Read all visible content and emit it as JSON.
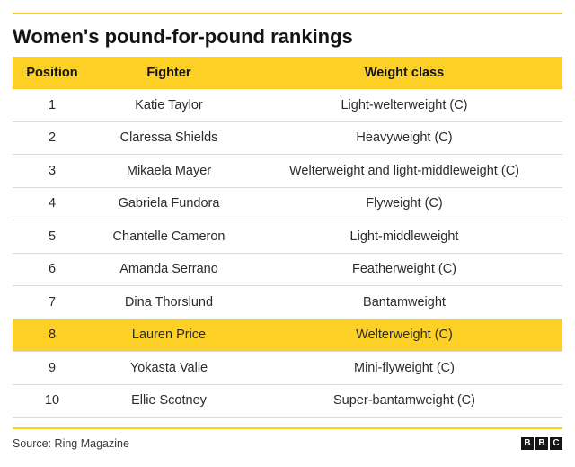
{
  "title": "Women's pound-for-pound rankings",
  "source": "Source: Ring Magazine",
  "logo": [
    "B",
    "B",
    "C"
  ],
  "colors": {
    "accent": "#fdd026",
    "text": "#222222",
    "divider": "#dcdcdc"
  },
  "chart_data": {
    "type": "table",
    "columns": [
      "Position",
      "Fighter",
      "Weight class"
    ],
    "rows": [
      [
        "1",
        "Katie Taylor",
        "Light-welterweight (C)"
      ],
      [
        "2",
        "Claressa Shields",
        "Heavyweight (C)"
      ],
      [
        "3",
        "Mikaela Mayer",
        "Welterweight and light-middleweight (C)"
      ],
      [
        "4",
        "Gabriela Fundora",
        "Flyweight (C)"
      ],
      [
        "5",
        "Chantelle Cameron",
        "Light-middleweight"
      ],
      [
        "6",
        "Amanda Serrano",
        "Featherweight (C)"
      ],
      [
        "7",
        "Dina Thorslund",
        "Bantamweight"
      ],
      [
        "8",
        "Lauren Price",
        "Welterweight (C)"
      ],
      [
        "9",
        "Yokasta Valle",
        "Mini-flyweight (C)"
      ],
      [
        "10",
        "Ellie Scotney",
        "Super-bantamweight (C)"
      ]
    ],
    "highlighted_row": 8
  }
}
